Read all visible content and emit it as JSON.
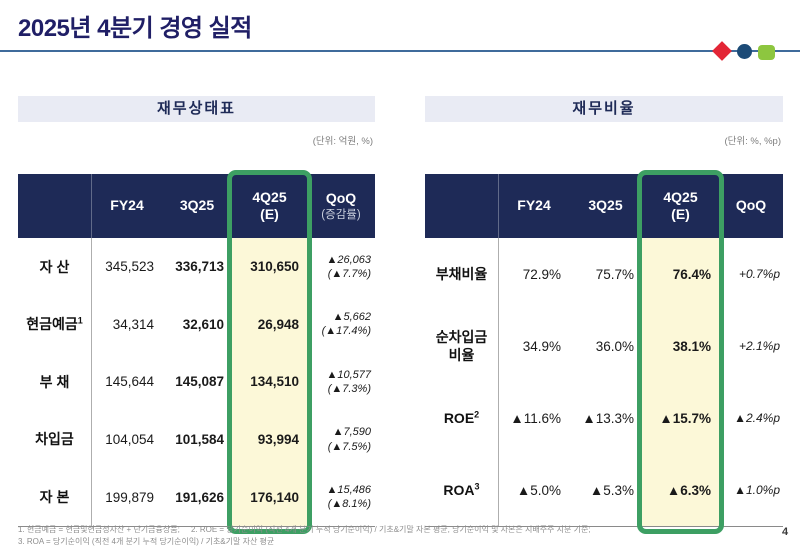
{
  "slide": {
    "title": "2025년 4분기 경영 실적",
    "page_number": "4",
    "footnote_line1": "1. 현금예금 = 현금및현금성자산 + 단기금융상품;     2. ROE = 당기순이익 (직전 4개 분기 누적 당기순이익) / 기초&기말 자본 평균, 당기순이익 및 자본은 지배주주 지분 기준;",
    "footnote_line2": "3. ROA = 당기순이익 (직전 4개 분기 누적 당기순이익) / 기초&기말 자산 평균",
    "colors": {
      "header_navy": "#1e2a57",
      "highlight_green": "#3d9f63",
      "highlight_yellow": "#fcf8d8",
      "deco_red": "#e32636",
      "deco_navy": "#1c4b77",
      "deco_green": "#8dc63f"
    }
  },
  "balance_table": {
    "title": "재무상태표",
    "unit": "(단위: 억원, %)",
    "headers": {
      "fy24": "FY24",
      "q3": "3Q25",
      "q4_line1": "4Q25",
      "q4_line2": "(E)",
      "qoq_line1": "QoQ",
      "qoq_line2": "(증감률)"
    },
    "rows": [
      {
        "label": "자 산",
        "sup": "",
        "fy24": "345,523",
        "q3": "336,713",
        "q4": "310,650",
        "qoq_abs": "▲26,063",
        "qoq_pct": "(▲7.7%)"
      },
      {
        "label": "현금예금",
        "sup": "1",
        "fy24": "34,314",
        "q3": "32,610",
        "q4": "26,948",
        "qoq_abs": "▲5,662",
        "qoq_pct": "(▲17.4%)"
      },
      {
        "label": "부 채",
        "sup": "",
        "fy24": "145,644",
        "q3": "145,087",
        "q4": "134,510",
        "qoq_abs": "▲10,577",
        "qoq_pct": "(▲7.3%)"
      },
      {
        "label": "차입금",
        "sup": "",
        "fy24": "104,054",
        "q3": "101,584",
        "q4": "93,994",
        "qoq_abs": "▲7,590",
        "qoq_pct": "(▲7.5%)"
      },
      {
        "label": "자 본",
        "sup": "",
        "fy24": "199,879",
        "q3": "191,626",
        "q4": "176,140",
        "qoq_abs": "▲15,486",
        "qoq_pct": "(▲8.1%)"
      }
    ]
  },
  "ratio_table": {
    "title": "재무비율",
    "unit": "(단위: %, %p)",
    "headers": {
      "fy24": "FY24",
      "q3": "3Q25",
      "q4_line1": "4Q25",
      "q4_line2": "(E)",
      "qoq": "QoQ"
    },
    "rows": [
      {
        "label": "부채비율",
        "sup": "",
        "fy24": "72.9%",
        "q3": "75.7%",
        "q4": "76.4%",
        "qoq": "+0.7%p"
      },
      {
        "label": "순차입금 비율",
        "sup": "",
        "fy24": "34.9%",
        "q3": "36.0%",
        "q4": "38.1%",
        "qoq": "+2.1%p"
      },
      {
        "label": "ROE",
        "sup": "2",
        "fy24": "▲11.6%",
        "q3": "▲13.3%",
        "q4": "▲15.7%",
        "qoq": "▲2.4%p"
      },
      {
        "label": "ROA",
        "sup": "3",
        "fy24": "▲5.0%",
        "q3": "▲5.3%",
        "q4": "▲6.3%",
        "qoq": "▲1.0%p"
      }
    ]
  }
}
